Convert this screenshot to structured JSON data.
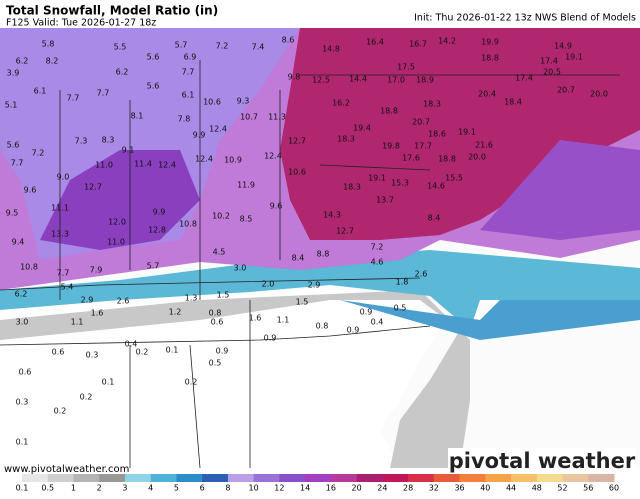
{
  "header": {
    "title": "Total Snowfall, Model Ratio (in)",
    "valid": "F125 Valid: Tue 2026-01-27 18z",
    "init": "Init: Thu 2026-01-22 13z NWS Blend of Models"
  },
  "watermark": {
    "url": "www.pivotalweather.com",
    "logo": "pivotal weather"
  },
  "map": {
    "labels": [
      "5.8",
      "5.5",
      "5.7",
      "7.2",
      "7.4",
      "8.6",
      "14.8",
      "16.4",
      "16.7",
      "14.2",
      "19.9",
      "14.9",
      "6.2",
      "8.2",
      "5.6",
      "6.9",
      "18.8",
      "17.4",
      "19.1",
      "3.9",
      "6.2",
      "7.7",
      "9.8",
      "12.5",
      "14.4",
      "17.0",
      "18.9",
      "17.5",
      "20.5",
      "17.4",
      "20.4",
      "6.1",
      "7.7",
      "7.7",
      "5.6",
      "6.1",
      "10.6",
      "9.3",
      "16.2",
      "18.8",
      "18.3",
      "18.4",
      "20.7",
      "20.0",
      "5.1",
      "8.1",
      "7.8",
      "10.7",
      "11.3",
      "19.4",
      "20.7",
      "19.1",
      "12.4",
      "9.9",
      "7.3",
      "8.3",
      "9.1",
      "12.7",
      "18.3",
      "18.6",
      "17.7",
      "19.8",
      "21.6",
      "5.6",
      "7.2",
      "11.0",
      "11.4",
      "12.4",
      "12.4",
      "10.9",
      "12.4",
      "17.6",
      "18.8",
      "20.0",
      "7.7",
      "9.0",
      "10.6",
      "19.1",
      "15.3",
      "15.5",
      "9.6",
      "12.7",
      "11.9",
      "18.3",
      "13.7",
      "14.6",
      "11.1",
      "12.0",
      "9.9",
      "10.2",
      "8.5",
      "9.6",
      "14.3",
      "8.4",
      "9.5",
      "13.3",
      "11.0",
      "12.8",
      "10.8",
      "12.7",
      "9.4",
      "4.5",
      "8.8",
      "7.2",
      "10.8",
      "7.7",
      "7.9",
      "5.7",
      "3.0",
      "8.4",
      "4.6",
      "5.4",
      "6.2",
      "2.6",
      "1.8",
      "2.9",
      "2.6",
      "1.3",
      "1.5",
      "2.0",
      "2.9",
      "1.5",
      "3.0",
      "1.6",
      "1.2",
      "0.8",
      "0.9",
      "0.5",
      "1.1",
      "0.6",
      "1.6",
      "1.1",
      "0.8",
      "0.9",
      "0.4",
      "0.6",
      "0.3",
      "0.4",
      "0.2",
      "0.1",
      "0.9",
      "0.9",
      "0.5",
      "0.6",
      "0.1",
      "0.2",
      "0.3",
      "0.2",
      "0.2",
      "0.1"
    ]
  },
  "colorbar": {
    "ticks": [
      "0.1",
      "0.5",
      "1",
      "2",
      "3",
      "4",
      "5",
      "6",
      "8",
      "10",
      "12",
      "14",
      "16",
      "20",
      "24",
      "28",
      "32",
      "36",
      "40",
      "44",
      "48",
      "52",
      "56",
      "60"
    ],
    "colors": [
      "#e6e6e6",
      "#cfcfcf",
      "#b4b4b4",
      "#989898",
      "#8fd3e8",
      "#4fb3d9",
      "#2a8fc9",
      "#2a5fb3",
      "#b7a0e6",
      "#9b72d8",
      "#8a4fc9",
      "#a33fc0",
      "#b53a9e",
      "#a8206f",
      "#c2185b",
      "#d9304a",
      "#e85a3a",
      "#f0803a",
      "#f5a34a",
      "#f7c16a",
      "#f5d98c",
      "#e8c7a0",
      "#d9b5a8"
    ]
  }
}
